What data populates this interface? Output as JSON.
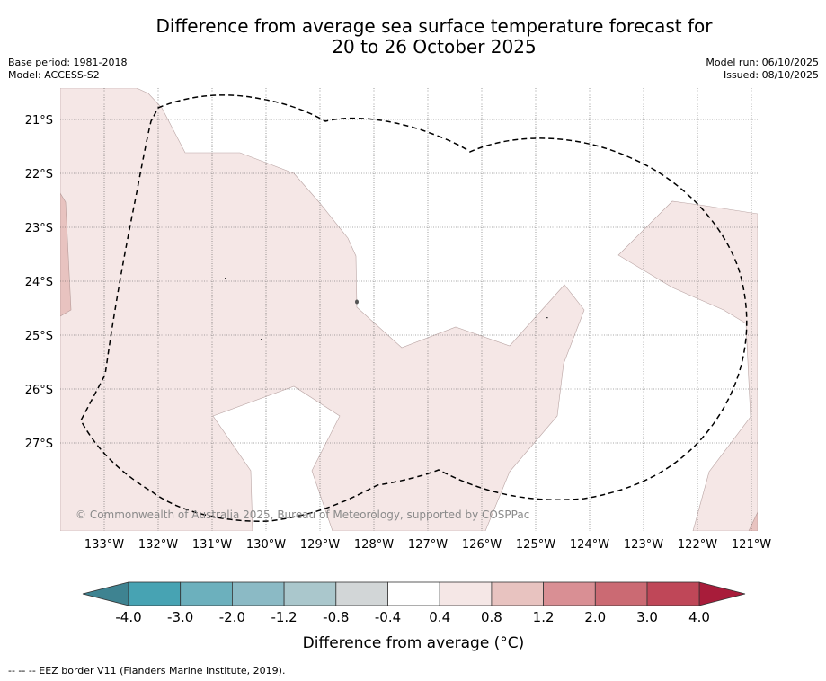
{
  "title": {
    "line1": "Difference from average sea surface temperature forecast for",
    "line2": "20 to 26 October 2025"
  },
  "meta_left": {
    "base_period": "Base period: 1981-2018",
    "model": "Model: ACCESS-S2"
  },
  "meta_right": {
    "model_run": "Model run: 06/10/2025",
    "issued": "Issued: 08/10/2025"
  },
  "map": {
    "lat_labels": [
      "21°S",
      "22°S",
      "23°S",
      "24°S",
      "25°S",
      "26°S",
      "27°S"
    ],
    "lon_labels": [
      "133°W",
      "132°W",
      "131°W",
      "130°W",
      "129°W",
      "128°W",
      "127°W",
      "126°W",
      "125°W",
      "124°W",
      "123°W",
      "122°W",
      "121°W"
    ],
    "copyright": "© Commonwealth of Australia 2025, Bureau of Meteorology, supported by COSPPac"
  },
  "colorbar": {
    "label": "Difference from average (°C)",
    "ticks": [
      "-4.0",
      "-3.0",
      "-2.0",
      "-1.2",
      "-0.8",
      "-0.4",
      "0.4",
      "0.8",
      "1.2",
      "2.0",
      "3.0",
      "4.0"
    ],
    "colors": {
      "under": "#3e8391",
      "bins": [
        "#47a3b3",
        "#6cb0bd",
        "#8bbac5",
        "#aac7cc",
        "#d2d6d7",
        "#ffffff",
        "#f5e7e6",
        "#e8c3c0",
        "#d98f94",
        "#cb6a73",
        "#bf4758"
      ],
      "over": "#a81c3a"
    }
  },
  "footnote": "--  --  -- EEZ border V11 (Flanders Marine Institute, 2019)."
}
